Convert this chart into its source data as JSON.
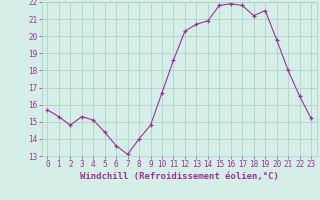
{
  "x": [
    0,
    1,
    2,
    3,
    4,
    5,
    6,
    7,
    8,
    9,
    10,
    11,
    12,
    13,
    14,
    15,
    16,
    17,
    18,
    19,
    20,
    21,
    22,
    23
  ],
  "y": [
    15.7,
    15.3,
    14.8,
    15.3,
    15.1,
    14.4,
    13.6,
    13.1,
    14.0,
    14.8,
    16.7,
    18.6,
    20.3,
    20.7,
    20.9,
    21.8,
    21.9,
    21.8,
    21.2,
    21.5,
    19.8,
    18.0,
    16.5,
    15.2
  ],
  "line_color": "#993399",
  "marker": "+",
  "bg_color": "#d6eee8",
  "grid_color": "#a8cec6",
  "xlabel": "Windchill (Refroidissement éolien,°C)",
  "xlabel_color": "#993399",
  "tick_color": "#993399",
  "ylim": [
    13,
    22
  ],
  "xlim": [
    -0.5,
    23.5
  ],
  "yticks": [
    13,
    14,
    15,
    16,
    17,
    18,
    19,
    20,
    21,
    22
  ],
  "xticks": [
    0,
    1,
    2,
    3,
    4,
    5,
    6,
    7,
    8,
    9,
    10,
    11,
    12,
    13,
    14,
    15,
    16,
    17,
    18,
    19,
    20,
    21,
    22,
    23
  ],
  "tick_fontsize": 5.5,
  "xlabel_fontsize": 6.5
}
